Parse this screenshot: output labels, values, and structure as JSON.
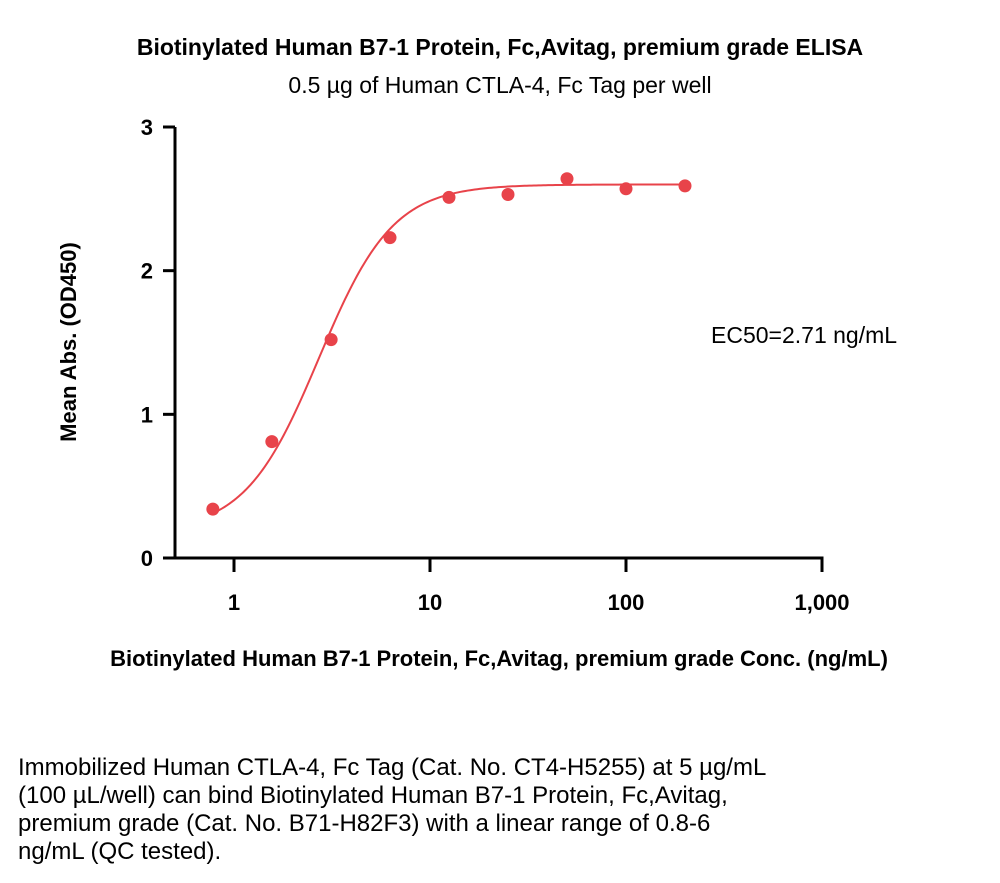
{
  "chart_data": {
    "type": "scatter",
    "title": "Biotinylated Human B7-1 Protein, Fc,Avitag, premium grade ELISA",
    "subtitle": "0.5 µg of Human CTLA-4, Fc Tag per well",
    "xlabel": "Biotinylated Human B7-1 Protein, Fc,Avitag, premium grade Conc. (ng/mL)",
    "ylabel": "Mean Abs. (OD450)",
    "x_scale": "log",
    "xlim": [
      0.5,
      1000
    ],
    "ylim": [
      0,
      3
    ],
    "x_ticks": [
      {
        "value": 1,
        "label": "1"
      },
      {
        "value": 10,
        "label": "10"
      },
      {
        "value": 100,
        "label": "100"
      },
      {
        "value": 1000,
        "label": "1,000"
      }
    ],
    "y_ticks": [
      {
        "value": 0,
        "label": "0"
      },
      {
        "value": 1,
        "label": "1"
      },
      {
        "value": 2,
        "label": "2"
      },
      {
        "value": 3,
        "label": "3"
      }
    ],
    "grid": false,
    "color": "#e8434a",
    "series": [
      {
        "x": [
          0.78,
          1.56,
          3.13,
          6.25,
          12.5,
          25,
          50,
          100,
          200
        ],
        "y": [
          0.34,
          0.81,
          1.52,
          2.23,
          2.51,
          2.53,
          2.64,
          2.57,
          2.59
        ]
      }
    ],
    "fit": {
      "model": "4PL",
      "bottom": 0.18,
      "top": 2.6,
      "ec50": 2.71,
      "hill": 2.3,
      "x_range": [
        0.78,
        200
      ]
    },
    "annotation": "EC50=2.71 ng/mL"
  },
  "note": "Immobilized Human CTLA-4, Fc Tag (Cat. No. CT4-H5255) at 5 µg/mL\n(100 µL/well) can bind Biotinylated Human B7-1 Protein, Fc,Avitag,\npremium grade (Cat. No. B71-H82F3) with a linear range of 0.8-6\nng/mL (QC tested)."
}
